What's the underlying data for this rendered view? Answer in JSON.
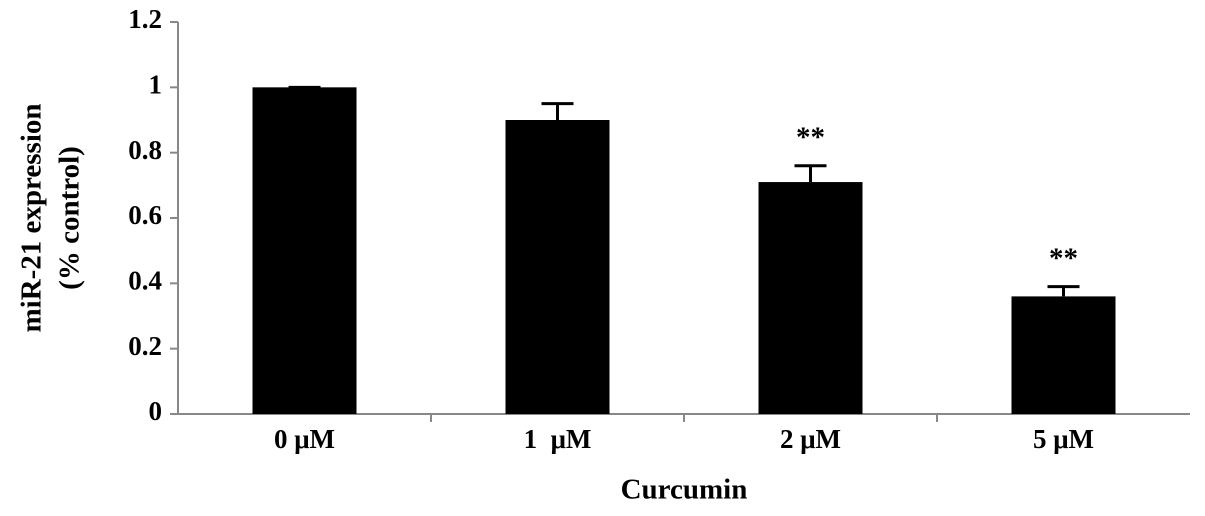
{
  "chart_data": {
    "type": "bar",
    "x_label": "Curcumin",
    "y_label": [
      "miR-21 expression",
      "(% control)"
    ],
    "categories": [
      "0 μM",
      "1  μM",
      "2 μM",
      "5 μM"
    ],
    "values": [
      1.0,
      0.9,
      0.71,
      0.36
    ],
    "errors": [
      0,
      0.05,
      0.05,
      0.03
    ],
    "annotations": [
      null,
      null,
      "**",
      "**"
    ],
    "color": "#000000",
    "ylim": [
      0,
      1.2
    ],
    "yticks": [
      0,
      0.2,
      0.4,
      0.6,
      0.8,
      1,
      1.2
    ],
    "grid": false
  }
}
